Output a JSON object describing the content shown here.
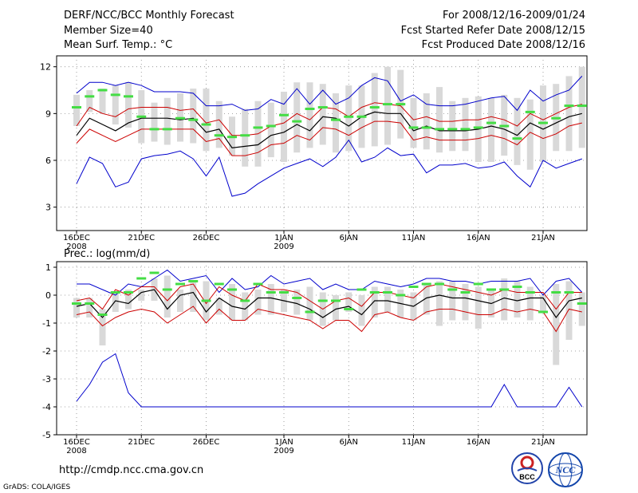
{
  "header": {
    "title": "DERF/NCC/BCC Monthly Forecast",
    "member_size": "Member Size=40",
    "variable": "Mean Surf. Temp.: °C",
    "for_range": "For 2008/12/16-2009/01/24",
    "fcst_started": "Fcst Started Refer Date 2008/12/15",
    "fcst_produced": "Fcst Produced Date 2008/12/16"
  },
  "footer": {
    "url": "http://cmdp.ncc.cma.gov.cn",
    "credit": "GrADS: COLA/IGES",
    "logo_left": "BCC",
    "logo_right": "NCC"
  },
  "colors": {
    "max_min_line": "#0000cc",
    "spread_line": "#cc0000",
    "mean_line": "#000000",
    "observed_bar": "#44dd44",
    "range_box": "#d9d9d9"
  },
  "chart_data": [
    {
      "type": "line",
      "panel": "temperature",
      "title": "Mean Surf. Temp.: °C",
      "days": 40,
      "x_ticks": [
        {
          "day": 1,
          "label": "16DEC",
          "sub": "2008"
        },
        {
          "day": 6,
          "label": "21DEC"
        },
        {
          "day": 11,
          "label": "26DEC"
        },
        {
          "day": 17,
          "label": "1JAN",
          "sub": "2009"
        },
        {
          "day": 22,
          "label": "6JAN"
        },
        {
          "day": 27,
          "label": "11JAN"
        },
        {
          "day": 32,
          "label": "16JAN"
        },
        {
          "day": 37,
          "label": "21JAN"
        }
      ],
      "ylim": [
        1.5,
        12.7
      ],
      "yticks": [
        3,
        6,
        9,
        12
      ],
      "grid": true,
      "series": [
        {
          "name": "max",
          "role": "envelope",
          "values": [
            10.3,
            11.0,
            11.0,
            10.8,
            11.0,
            10.8,
            10.4,
            10.4,
            10.4,
            10.3,
            9.5,
            9.5,
            9.6,
            9.2,
            9.3,
            9.9,
            9.6,
            10.6,
            9.6,
            10.5,
            9.6,
            10.0,
            10.8,
            11.3,
            11.1,
            9.8,
            10.2,
            9.6,
            9.5,
            9.5,
            9.6,
            9.8,
            10.0,
            10.1,
            9.2,
            10.5,
            9.8,
            10.2,
            10.5,
            11.4,
            11.0
          ]
        },
        {
          "name": "min",
          "role": "envelope",
          "values": [
            4.5,
            6.2,
            5.8,
            4.3,
            4.6,
            6.1,
            6.3,
            6.4,
            6.6,
            6.1,
            5.0,
            6.2,
            3.7,
            3.9,
            4.5,
            5.0,
            5.5,
            5.8,
            6.1,
            5.6,
            6.2,
            7.3,
            5.9,
            6.2,
            6.8,
            6.3,
            6.4,
            5.2,
            5.7,
            5.7,
            5.8,
            5.5,
            5.6,
            5.9,
            5.0,
            4.3,
            6.0,
            5.5,
            5.8,
            6.1,
            6.1,
            6.5
          ]
        },
        {
          "name": "upper",
          "role": "spread",
          "values": [
            8.2,
            9.4,
            9.0,
            8.8,
            9.3,
            9.4,
            9.4,
            9.4,
            9.2,
            9.3,
            8.4,
            8.6,
            7.6,
            7.6,
            7.7,
            8.2,
            8.4,
            9.0,
            8.6,
            9.4,
            9.3,
            8.8,
            9.4,
            9.7,
            9.6,
            9.5,
            8.6,
            8.8,
            8.5,
            8.5,
            8.6,
            8.6,
            8.8,
            8.6,
            8.2,
            9.0,
            8.6,
            9.0,
            9.4,
            9.6,
            9.5,
            9.5
          ]
        },
        {
          "name": "lower",
          "role": "spread",
          "values": [
            7.1,
            8.0,
            7.6,
            7.2,
            7.6,
            8.0,
            8.0,
            8.0,
            8.0,
            8.0,
            7.2,
            7.4,
            6.3,
            6.3,
            6.5,
            7.0,
            7.1,
            7.6,
            7.3,
            8.1,
            8.0,
            7.6,
            8.1,
            8.5,
            8.5,
            8.4,
            7.3,
            7.5,
            7.3,
            7.3,
            7.3,
            7.4,
            7.6,
            7.4,
            7.0,
            7.8,
            7.4,
            7.7,
            8.2,
            8.4,
            8.5
          ]
        },
        {
          "name": "mean",
          "role": "mean",
          "values": [
            7.6,
            8.7,
            8.3,
            7.9,
            8.4,
            8.7,
            8.7,
            8.7,
            8.6,
            8.7,
            7.8,
            8.0,
            6.8,
            6.9,
            7.0,
            7.6,
            7.8,
            8.3,
            7.9,
            8.8,
            8.7,
            8.2,
            8.8,
            9.1,
            9.0,
            9.0,
            7.9,
            8.2,
            7.9,
            7.9,
            7.9,
            8.0,
            8.2,
            8.0,
            7.6,
            8.4,
            8.0,
            8.4,
            8.8,
            9.0,
            9.0
          ]
        },
        {
          "name": "observed",
          "role": "marker",
          "values": [
            9.4,
            10.1,
            10.5,
            10.2,
            10.1,
            8.8,
            8.0,
            8.0,
            8.7,
            8.6,
            8.3,
            7.6,
            7.5,
            7.6,
            8.1,
            8.2,
            8.9,
            8.5,
            9.3,
            9.4,
            8.6,
            8.8,
            8.8,
            9.4,
            9.6,
            9.6,
            8.1,
            8.1,
            8.0,
            8.0,
            8.0,
            8.1,
            8.4,
            8.2,
            7.4,
            9.1,
            8.4,
            8.7,
            9.5,
            9.5,
            9.6
          ]
        },
        {
          "name": "box_high",
          "role": "range_box",
          "values": [
            10.2,
            10.5,
            10.6,
            10.8,
            11.0,
            10.5,
            9.7,
            10.0,
            10.3,
            10.6,
            10.6,
            9.8,
            8.8,
            9.3,
            9.8,
            9.7,
            10.4,
            11.0,
            11.0,
            10.9,
            10.3,
            10.8,
            10.8,
            11.6,
            12.0,
            11.8,
            10.0,
            10.3,
            10.7,
            9.8,
            10.0,
            10.1,
            10.0,
            10.2,
            10.0,
            9.9,
            10.8,
            10.9,
            11.4,
            12.0,
            11.2,
            10.7
          ]
        },
        {
          "name": "box_low",
          "role": "range_box",
          "values": [
            8.2,
            9.1,
            9.0,
            8.3,
            8.1,
            7.1,
            7.2,
            7.0,
            7.2,
            7.1,
            6.6,
            6.8,
            6.3,
            5.6,
            5.6,
            6.2,
            5.9,
            6.5,
            6.8,
            7.0,
            6.5,
            6.6,
            6.8,
            6.9,
            7.0,
            7.4,
            6.8,
            6.7,
            6.5,
            6.6,
            6.6,
            5.9,
            5.9,
            6.3,
            5.7,
            5.4,
            5.9,
            6.6,
            6.6,
            6.8,
            7.0
          ]
        }
      ]
    },
    {
      "type": "line",
      "panel": "precipitation",
      "title": "Prec.: log(mm/d)",
      "days": 40,
      "x_ticks": [
        {
          "day": 1,
          "label": "16DEC",
          "sub": "2008"
        },
        {
          "day": 6,
          "label": "21DEC"
        },
        {
          "day": 11,
          "label": "26DEC"
        },
        {
          "day": 17,
          "label": "1JAN",
          "sub": "2009"
        },
        {
          "day": 22,
          "label": "6JAN"
        },
        {
          "day": 27,
          "label": "11JAN"
        },
        {
          "day": 32,
          "label": "16JAN"
        },
        {
          "day": 37,
          "label": "21JAN"
        }
      ],
      "ylim": [
        -5,
        1.2
      ],
      "yticks": [
        -5,
        -4,
        -3,
        -2,
        -1,
        0,
        1
      ],
      "grid": true,
      "series": [
        {
          "name": "max",
          "role": "envelope",
          "values": [
            0.4,
            0.4,
            0.2,
            0.0,
            0.4,
            0.3,
            0.6,
            0.9,
            0.5,
            0.6,
            0.7,
            0.1,
            0.6,
            0.2,
            0.3,
            0.7,
            0.4,
            0.5,
            0.6,
            0.2,
            0.4,
            0.2,
            0.2,
            0.5,
            0.4,
            0.3,
            0.4,
            0.6,
            0.6,
            0.5,
            0.5,
            0.4,
            0.5,
            0.5,
            0.5,
            0.6,
            0.0,
            0.5,
            0.6,
            0.1,
            0.3,
            0.3
          ]
        },
        {
          "name": "min",
          "role": "envelope",
          "values": [
            -3.8,
            -3.2,
            -2.4,
            -2.1,
            -3.5,
            -4.0,
            -4.0,
            -4.0,
            -4.0,
            -4.0,
            -4.0,
            -4.0,
            -4.0,
            -4.0,
            -4.0,
            -4.0,
            -4.0,
            -4.0,
            -4.0,
            -4.0,
            -4.0,
            -4.0,
            -4.0,
            -4.0,
            -4.0,
            -4.0,
            -4.0,
            -4.0,
            -4.0,
            -4.0,
            -4.0,
            -4.0,
            -4.0,
            -3.2,
            -4.0,
            -4.0,
            -4.0,
            -4.0,
            -3.3,
            -4.0,
            -3.6
          ]
        },
        {
          "name": "upper",
          "role": "spread",
          "values": [
            -0.2,
            -0.1,
            -0.5,
            0.2,
            0.0,
            0.3,
            0.3,
            -0.2,
            0.3,
            0.4,
            -0.3,
            0.3,
            0.0,
            -0.2,
            0.4,
            0.2,
            0.2,
            0.1,
            -0.2,
            -0.5,
            -0.2,
            -0.1,
            -0.4,
            0.1,
            0.1,
            0.0,
            -0.1,
            0.3,
            0.4,
            0.3,
            0.2,
            0.1,
            0.0,
            0.2,
            0.1,
            0.1,
            0.1,
            -0.5,
            0.1,
            0.1,
            -0.3,
            -0.2
          ]
        },
        {
          "name": "lower",
          "role": "spread",
          "values": [
            -0.7,
            -0.6,
            -1.1,
            -0.8,
            -0.6,
            -0.5,
            -0.6,
            -1.0,
            -0.7,
            -0.4,
            -1.0,
            -0.5,
            -0.9,
            -0.9,
            -0.5,
            -0.6,
            -0.7,
            -0.8,
            -0.9,
            -1.2,
            -0.9,
            -0.9,
            -1.3,
            -0.7,
            -0.6,
            -0.8,
            -0.9,
            -0.6,
            -0.5,
            -0.5,
            -0.6,
            -0.7,
            -0.7,
            -0.5,
            -0.6,
            -0.5,
            -0.6,
            -1.3,
            -0.5,
            -0.6,
            -0.9,
            -0.8
          ]
        },
        {
          "name": "mean",
          "role": "mean",
          "values": [
            -0.4,
            -0.3,
            -0.8,
            -0.2,
            -0.3,
            0.1,
            0.2,
            -0.5,
            0.0,
            0.1,
            -0.6,
            -0.1,
            -0.4,
            -0.5,
            -0.1,
            -0.1,
            -0.2,
            -0.3,
            -0.5,
            -0.8,
            -0.5,
            -0.4,
            -0.7,
            -0.2,
            -0.2,
            -0.3,
            -0.4,
            -0.1,
            0.0,
            -0.1,
            -0.1,
            -0.2,
            -0.3,
            -0.1,
            -0.2,
            -0.1,
            -0.1,
            -0.8,
            -0.2,
            -0.1,
            -0.5,
            -0.4
          ]
        },
        {
          "name": "observed",
          "role": "marker",
          "values": [
            -0.3,
            -0.3,
            -0.7,
            0.1,
            0.1,
            0.6,
            0.8,
            0.2,
            0.4,
            0.5,
            -0.2,
            0.4,
            0.2,
            -0.2,
            0.4,
            0.1,
            0.1,
            -0.1,
            -0.6,
            -0.2,
            -0.2,
            -0.5,
            0.2,
            0.1,
            0.1,
            0.0,
            0.3,
            0.4,
            0.4,
            0.2,
            0.1,
            0.4,
            0.2,
            0.2,
            0.3,
            0.1,
            -0.6,
            0.1,
            0.1,
            -0.3,
            -0.1
          ]
        },
        {
          "name": "box_high",
          "role": "range_box",
          "values": [
            -0.1,
            -0.1,
            -0.5,
            0.1,
            0.2,
            0.2,
            0.6,
            0.7,
            0.2,
            0.5,
            0.5,
            -0.1,
            0.4,
            0.1,
            0.2,
            0.4,
            0.2,
            0.2,
            0.3,
            0.1,
            0.0,
            0.1,
            0.0,
            0.3,
            0.3,
            0.2,
            0.1,
            0.4,
            0.5,
            0.5,
            0.4,
            0.3,
            0.2,
            0.6,
            0.5,
            0.3,
            0.0,
            0.4,
            0.5,
            0.1,
            0.3,
            0.3
          ]
        },
        {
          "name": "box_low",
          "role": "range_box",
          "values": [
            -0.8,
            -0.8,
            -1.8,
            -0.6,
            -0.5,
            -0.2,
            -0.2,
            -0.8,
            -0.6,
            -0.6,
            -0.9,
            -0.7,
            -0.9,
            -0.9,
            -0.7,
            -0.7,
            -0.6,
            -0.7,
            -0.9,
            -1.1,
            -0.9,
            -0.6,
            -1.1,
            -0.8,
            -0.6,
            -0.8,
            -0.9,
            -0.7,
            -1.1,
            -0.9,
            -0.9,
            -1.2,
            -0.8,
            -0.9,
            -0.8,
            -0.9,
            -0.6,
            -2.5,
            -1.6,
            -1.1,
            -1.0,
            -1.2
          ]
        }
      ]
    }
  ]
}
